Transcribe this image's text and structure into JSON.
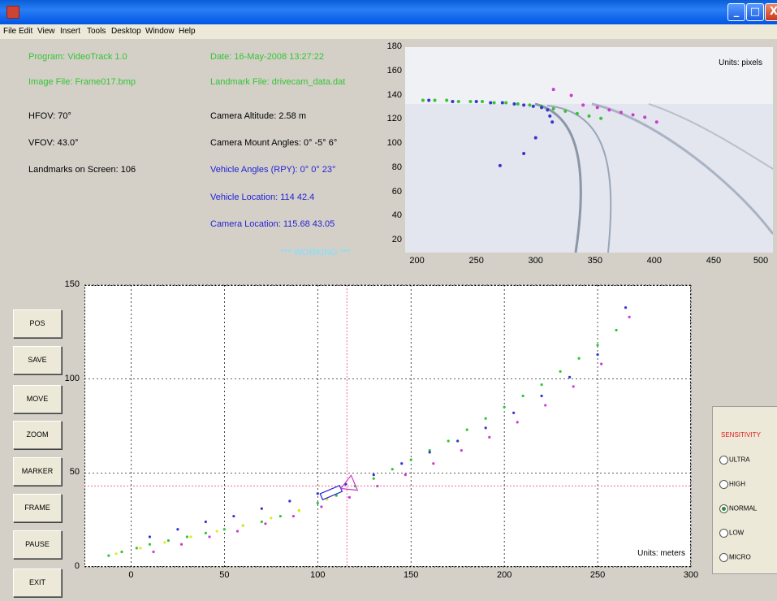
{
  "menu": [
    "File",
    "Edit",
    "View",
    "Insert",
    "Tools",
    "Desktop",
    "Window",
    "Help"
  ],
  "window_buttons": {
    "minimize": "_",
    "maximize": "□",
    "close": "X"
  },
  "info": {
    "program": "Program: VideoTrack 1.0",
    "date": "Date: 16-May-2008 13:27:22",
    "image_file": "Image File: Frame017.bmp",
    "landmark_file": "Landmark File: drivecam_data.dat",
    "hfov": "HFOV: 70°",
    "camera_altitude": "Camera Altitude: 2.58 m",
    "vfov": "VFOV: 43.0°",
    "camera_mount_angles": "Camera Mount Angles: 0° -5° 6°",
    "landmarks_on_screen": "Landmarks on Screen: 106",
    "vehicle_angles": "Vehicle Angles (RPY): 0°  0°  23°",
    "vehicle_location": "Vehicle Location: 114  42.4",
    "camera_location": "Camera Location: 115.68  43.05",
    "status": "*** WORKING ***"
  },
  "colors": {
    "green_text": "#34c434",
    "blue_text": "#2323d4",
    "status_text": "#7fe0ff",
    "sensitivity_title": "#e01a1a"
  },
  "buttons": [
    "POS",
    "SAVE",
    "MOVE",
    "ZOOM",
    "MARKER",
    "FRAME",
    "PAUSE",
    "EXIT"
  ],
  "sensitivity": {
    "title": "SENSITIVITY",
    "options": [
      "ULTRA",
      "HIGH",
      "NORMAL",
      "LOW",
      "MICRO"
    ],
    "selected": "NORMAL"
  },
  "chart_data": [
    {
      "type": "scatter",
      "title": "",
      "units_label": "Units: pixels",
      "x_ticks": [
        "200",
        "250",
        "300",
        "350",
        "400",
        "450",
        "500"
      ],
      "y_ticks": [
        "180",
        "160",
        "140",
        "120",
        "100",
        "80",
        "60",
        "40",
        "20"
      ],
      "xlim": [
        190,
        500
      ],
      "ylim": [
        10,
        180
      ],
      "series": [
        {
          "color": "#34c434",
          "x": [
            205,
            215,
            225,
            235,
            245,
            255,
            265,
            275,
            285,
            295,
            305,
            315,
            325,
            335,
            345,
            355
          ],
          "y": [
            136,
            136,
            136,
            135,
            135,
            135,
            134,
            134,
            133,
            132,
            131,
            129,
            127,
            125,
            123,
            121
          ]
        },
        {
          "color": "#3535d0",
          "x": [
            210,
            230,
            250,
            262,
            272,
            282,
            290,
            298,
            305,
            310,
            312,
            314,
            300,
            290,
            270
          ],
          "y": [
            136,
            135,
            135,
            134,
            134,
            133,
            132,
            131,
            130,
            128,
            123,
            118,
            105,
            92,
            82
          ]
        },
        {
          "color": "#cc3bcc",
          "x": [
            315,
            330,
            340,
            352,
            362,
            372,
            382,
            392,
            402
          ],
          "y": [
            145,
            140,
            132,
            130,
            128,
            126,
            124,
            122,
            118
          ]
        }
      ]
    },
    {
      "type": "scatter",
      "title": "",
      "units_label": "Units: meters",
      "x_ticks": [
        "0",
        "50",
        "100",
        "150",
        "200",
        "250",
        "300"
      ],
      "y_ticks": [
        "150",
        "100",
        "50",
        "0"
      ],
      "xlim": [
        -25,
        300
      ],
      "ylim": [
        0,
        150
      ],
      "crosshair": {
        "x": 115.68,
        "y": 43.05
      },
      "vehicle": {
        "x": 114,
        "y": 42.4,
        "heading_deg": 23
      },
      "series": [
        {
          "color": "#34c434",
          "x": [
            -12,
            -5,
            3,
            10,
            20,
            30,
            40,
            50,
            60,
            70,
            80,
            90,
            100,
            110,
            120,
            130,
            140,
            150,
            160,
            170,
            180,
            190,
            200,
            210,
            220,
            230,
            240,
            250,
            260
          ],
          "y": [
            6,
            8,
            10,
            12,
            14,
            16,
            18,
            20,
            22,
            24,
            27,
            30,
            34,
            38,
            43,
            47,
            52,
            57,
            62,
            67,
            73,
            79,
            85,
            91,
            97,
            104,
            111,
            118,
            126
          ]
        },
        {
          "color": "#3535d0",
          "x": [
            10,
            25,
            40,
            55,
            70,
            85,
            100,
            115,
            130,
            145,
            160,
            175,
            190,
            205,
            220,
            235,
            250,
            265
          ],
          "y": [
            16,
            20,
            24,
            27,
            31,
            35,
            39,
            44,
            49,
            55,
            61,
            67,
            74,
            82,
            91,
            101,
            113,
            138
          ]
        },
        {
          "color": "#cc3bcc",
          "x": [
            12,
            27,
            42,
            57,
            72,
            87,
            102,
            117,
            132,
            147,
            162,
            177,
            192,
            207,
            222,
            237,
            252,
            267
          ],
          "y": [
            8,
            12,
            16,
            19,
            23,
            27,
            32,
            37,
            43,
            49,
            55,
            62,
            69,
            77,
            86,
            96,
            108,
            133
          ]
        },
        {
          "color": "#e6e61a",
          "x": [
            -8,
            5,
            18,
            32,
            46,
            60,
            75,
            90,
            105
          ],
          "y": [
            7,
            10,
            13,
            16,
            19,
            22,
            26,
            30,
            36
          ]
        }
      ]
    }
  ]
}
